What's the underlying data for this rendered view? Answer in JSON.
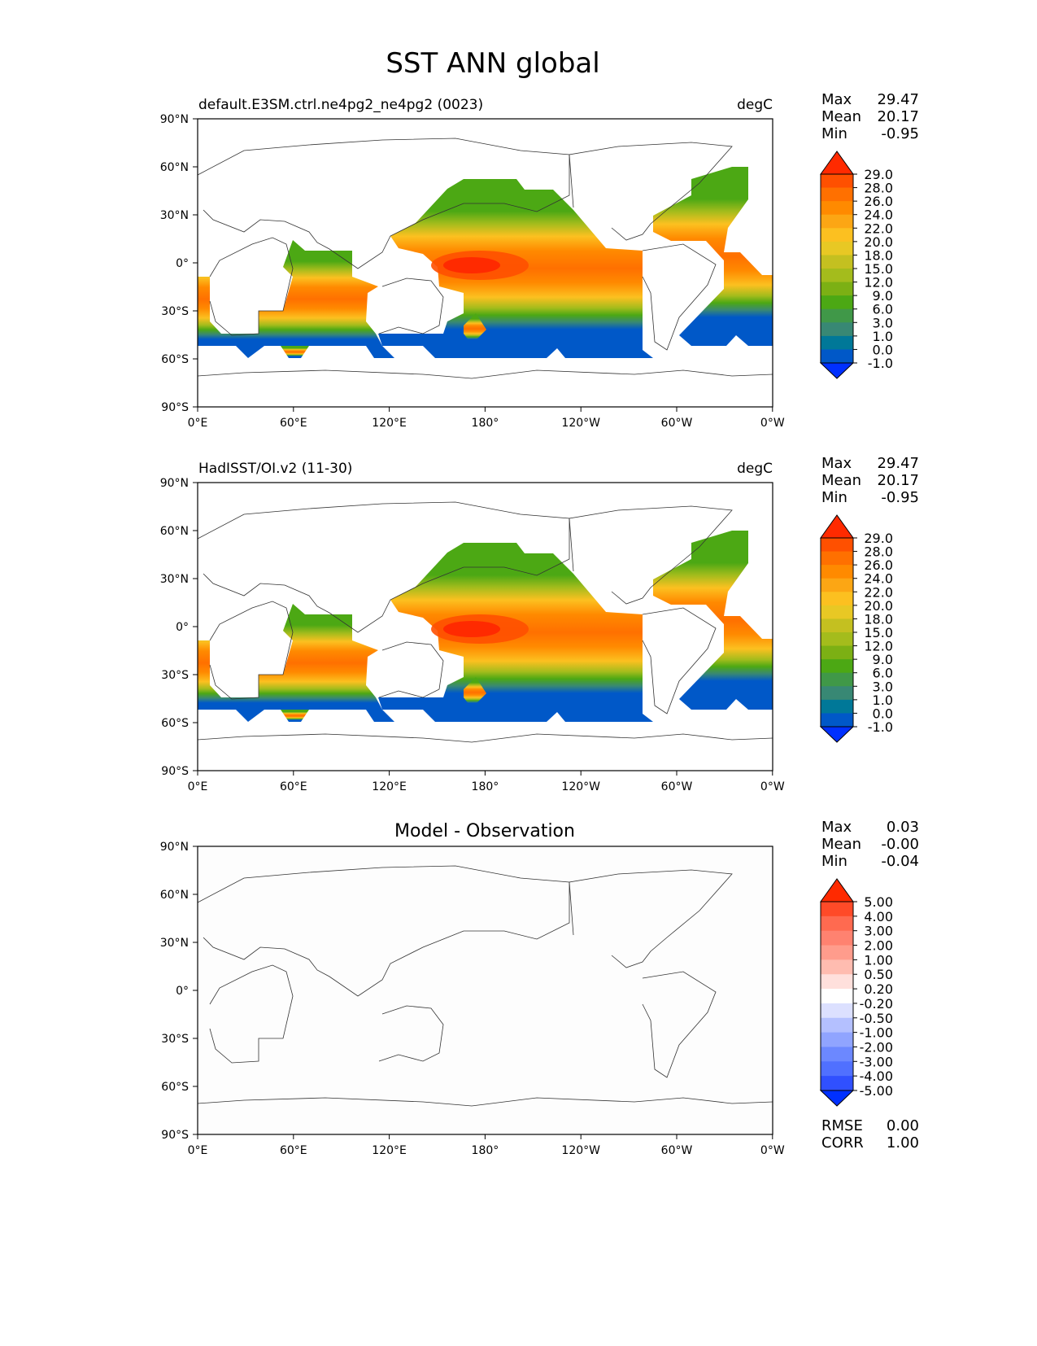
{
  "figure_title": "SST ANN global",
  "chart_data": [
    {
      "type": "heatmap",
      "title_left": "default.E3SM.ctrl.ne4pg2_ne4pg2 (0023)",
      "title_right": "degC",
      "stats": {
        "max_label": "Max",
        "max": "29.47",
        "mean_label": "Mean",
        "mean": "20.17",
        "min_label": "Min",
        "min": "-0.95"
      },
      "colorbar_ticks": [
        "29.0",
        "28.0",
        "26.0",
        "24.0",
        "22.0",
        "20.0",
        "18.0",
        "15.0",
        "12.0",
        "9.0",
        "6.0",
        "3.0",
        "1.0",
        "0.0",
        "-1.0"
      ],
      "xticks": [
        "0°E",
        "60°E",
        "120°E",
        "180°",
        "120°W",
        "60°W",
        "0°W"
      ],
      "yticks": [
        "90°N",
        "60°N",
        "30°N",
        "0°",
        "30°S",
        "60°S",
        "90°S"
      ]
    },
    {
      "type": "heatmap",
      "title_left": "HadISST/OI.v2 (11-30)",
      "title_right": "degC",
      "stats": {
        "max_label": "Max",
        "max": "29.47",
        "mean_label": "Mean",
        "mean": "20.17",
        "min_label": "Min",
        "min": "-0.95"
      },
      "colorbar_ticks": [
        "29.0",
        "28.0",
        "26.0",
        "24.0",
        "22.0",
        "20.0",
        "18.0",
        "15.0",
        "12.0",
        "9.0",
        "6.0",
        "3.0",
        "1.0",
        "0.0",
        "-1.0"
      ],
      "xticks": [
        "0°E",
        "60°E",
        "120°E",
        "180°",
        "120°W",
        "60°W",
        "0°W"
      ],
      "yticks": [
        "90°N",
        "60°N",
        "30°N",
        "0°",
        "30°S",
        "60°S",
        "90°S"
      ]
    },
    {
      "type": "heatmap",
      "title_center": "Model - Observation",
      "stats": {
        "max_label": "Max",
        "max": "0.03",
        "mean_label": "Mean",
        "mean": "-0.00",
        "min_label": "Min",
        "min": "-0.04"
      },
      "colorbar_ticks": [
        "5.00",
        "4.00",
        "3.00",
        "2.00",
        "1.00",
        "0.50",
        "0.20",
        "-0.20",
        "-0.50",
        "-1.00",
        "-2.00",
        "-3.00",
        "-4.00",
        "-5.00"
      ],
      "metrics": {
        "rmse_label": "RMSE",
        "rmse": "0.00",
        "corr_label": "CORR",
        "corr": "1.00"
      },
      "xticks": [
        "0°E",
        "60°E",
        "120°E",
        "180°",
        "120°W",
        "60°W",
        "0°W"
      ],
      "yticks": [
        "90°N",
        "60°N",
        "30°N",
        "0°",
        "30°S",
        "60°S",
        "90°S"
      ]
    }
  ],
  "colors": {
    "sst": [
      "#ff2a00",
      "#ff5000",
      "#ff7000",
      "#ff8a00",
      "#fca614",
      "#fcc020",
      "#e8c824",
      "#c4c020",
      "#a4bc1c",
      "#7cb014",
      "#4ca814",
      "#409848",
      "#388874",
      "#007898",
      "#0058c8",
      "#0030ff"
    ],
    "diff": [
      "#ff2a00",
      "#ff4a28",
      "#ff6a50",
      "#ff8270",
      "#ff9c8c",
      "#ffbcb0",
      "#ffe0dc",
      "#ffffff",
      "#dce0ff",
      "#b4c0ff",
      "#90a4ff",
      "#6c88ff",
      "#5070ff",
      "#3050ff",
      "#0030ff"
    ]
  }
}
